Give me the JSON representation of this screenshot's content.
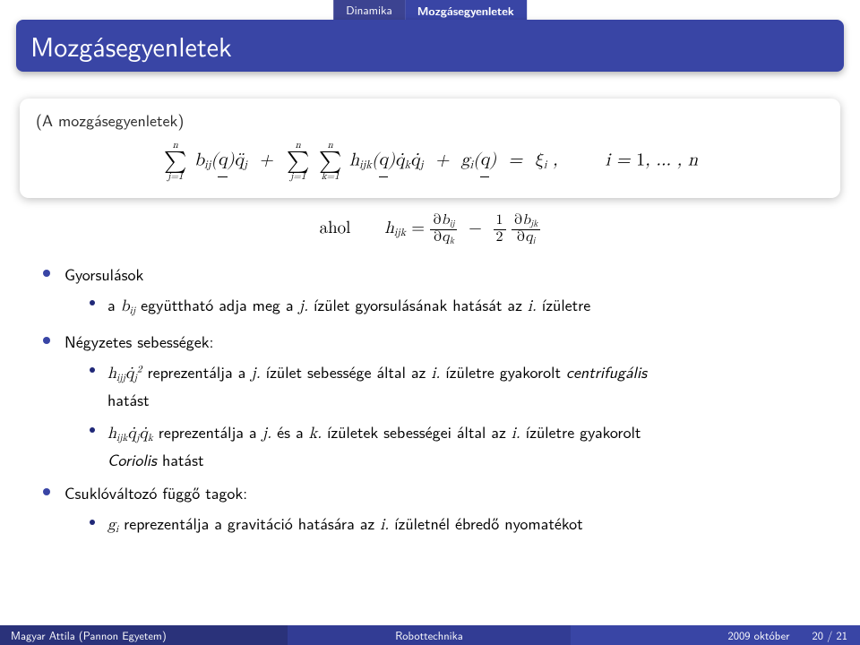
{
  "colors": {
    "brand_primary": "#3945a5",
    "brand_dark": "#272f86",
    "footer_left": "#2a327a",
    "footer_mid": "#323c94",
    "bullet_inner": "#202878",
    "background": "#ffffff",
    "text": "#000000",
    "title_text": "#ffffff"
  },
  "minitabs": {
    "inactive": "Dinamika",
    "active": "Mozgásegyenletek"
  },
  "title": "Mozgásegyenletek",
  "block": {
    "caption": "(A mozgásegyenletek)",
    "equation_text": "∑_{j=1}^{n} b_{ij}(q) q̈_j  +  ∑_{j=1}^{n} ∑_{k=1}^{n} h_{ijk}(q) q̇_k q̇_j  +  g_i(q)  =  ξ_i ,   i = 1, …, n"
  },
  "ahol_line": {
    "label": "ahol",
    "formula_text": "h_{ijk} = ∂b_{ij}/∂q_k − (1/2) ∂b_{jk}/∂q_i"
  },
  "bullets": {
    "acceleration": {
      "head": "Gyorsulások",
      "item_prefix": "a ",
      "item_mid": " együttható adja meg a ",
      "item_tail": " ízület gyorsulásának hatását az ",
      "item_end": " ízületre"
    },
    "quadratic": {
      "head": "Négyzetes sebességek:",
      "item1_prefix_math": "h_{ijj} q̇_j^2",
      "item1_text_a": " reprezentálja a ",
      "item1_text_b": " ízület sebessége által az ",
      "item1_text_c": " ízületre gyakorolt ",
      "item1_centrifugal": "centrifugális",
      "item1_text_d": " hatást",
      "item2_prefix_math": "h_{ijk} q̇_j q̇_k",
      "item2_text_a": " reprezentálja a ",
      "item2_text_b": " és a ",
      "item2_text_c": " ízületek sebességei által az ",
      "item2_text_d": " ízületre gyakorolt ",
      "item2_coriolis": "Coriolis",
      "item2_text_e": " hatást"
    },
    "joint": {
      "head": "Csuklóváltozó függő tagok:",
      "item_prefix_math": "g_i",
      "item_text_a": " reprezentálja a gravitáció hatására az ",
      "item_text_b": " ízületnél ébredő nyomatékot"
    },
    "idx_j": "j.",
    "idx_i": "i.",
    "idx_k": "k.",
    "bij": "b_{ij}"
  },
  "footer": {
    "left": "Magyar Attila (Pannon Egyetem)",
    "mid": "Robottechnika",
    "right_date": "2009 október",
    "right_page": "20 / 21"
  },
  "typography": {
    "title_fontsize": 30,
    "body_fontsize": 18,
    "eq_fontsize": 20,
    "footer_fontsize": 12.5
  }
}
